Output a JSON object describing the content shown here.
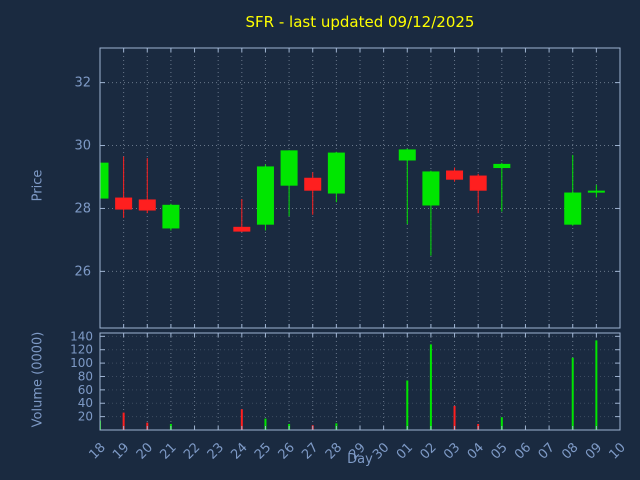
{
  "title": "SFR - last updated 09/12/2025",
  "xlabel": "Day",
  "price_axis_label": "Price",
  "volume_axis_label": "Volume (0000)",
  "colors": {
    "background": "#1a2a40",
    "title": "#ffff00",
    "axis": "#9fb4d2",
    "tick_text": "#7e9ac6",
    "grid": "#c8d4e4",
    "up": "#00e600",
    "down": "#ff1f1f"
  },
  "chart_data": {
    "type": "candlestick+volume",
    "title": "SFR - last updated 09/12/2025",
    "xlabel": "Day",
    "ylabel_price": "Price",
    "ylabel_volume": "Volume (0000)",
    "categories": [
      "18",
      "19",
      "20",
      "21",
      "22",
      "23",
      "24",
      "25",
      "26",
      "27",
      "28",
      "29",
      "30",
      "01",
      "02",
      "03",
      "04",
      "05",
      "06",
      "07",
      "08",
      "09",
      "10"
    ],
    "price_ticks": [
      26,
      28,
      30,
      32
    ],
    "volume_ticks": [
      20,
      40,
      60,
      80,
      100,
      120,
      140
    ],
    "price_ylim": [
      24.2,
      33.1
    ],
    "volume_ylim": [
      0,
      145
    ],
    "grid": true,
    "series": [
      {
        "name": "OHLC",
        "points": [
          {
            "day": "18",
            "open": 28.33,
            "high": 29.5,
            "low": 28.1,
            "close": 29.44,
            "volume": 14
          },
          {
            "day": "19",
            "open": 28.33,
            "high": 29.65,
            "low": 27.7,
            "close": 27.98,
            "volume": 26
          },
          {
            "day": "20",
            "open": 28.27,
            "high": 29.6,
            "low": 27.85,
            "close": 27.95,
            "volume": 11
          },
          {
            "day": "21",
            "open": 27.38,
            "high": 28.15,
            "low": 27.3,
            "close": 28.1,
            "volume": 9
          },
          {
            "day": "24",
            "open": 27.4,
            "high": 28.3,
            "low": 27.25,
            "close": 27.28,
            "volume": 31
          },
          {
            "day": "25",
            "open": 27.5,
            "high": 29.4,
            "low": 27.3,
            "close": 29.32,
            "volume": 17
          },
          {
            "day": "26",
            "open": 28.74,
            "high": 29.85,
            "low": 27.75,
            "close": 29.83,
            "volume": 9
          },
          {
            "day": "27",
            "open": 28.96,
            "high": 29.15,
            "low": 27.8,
            "close": 28.58,
            "volume": 7
          },
          {
            "day": "28",
            "open": 28.49,
            "high": 29.8,
            "low": 28.2,
            "close": 29.76,
            "volume": 10
          },
          {
            "day": "01",
            "open": 29.54,
            "high": 29.9,
            "low": 27.5,
            "close": 29.86,
            "volume": 74
          },
          {
            "day": "02",
            "open": 28.11,
            "high": 29.2,
            "low": 26.5,
            "close": 29.16,
            "volume": 128
          },
          {
            "day": "03",
            "open": 29.19,
            "high": 29.3,
            "low": 28.85,
            "close": 28.93,
            "volume": 36
          },
          {
            "day": "04",
            "open": 29.03,
            "high": 29.1,
            "low": 27.85,
            "close": 28.58,
            "volume": 9
          },
          {
            "day": "05",
            "open": 29.3,
            "high": 29.45,
            "low": 27.9,
            "close": 29.4,
            "volume": 19
          },
          {
            "day": "08",
            "open": 27.5,
            "high": 29.7,
            "low": 27.45,
            "close": 28.49,
            "volume": 108
          },
          {
            "day": "09",
            "open": 28.55,
            "high": 28.75,
            "low": 28.35,
            "close": 28.55,
            "volume": 134
          }
        ]
      }
    ]
  }
}
